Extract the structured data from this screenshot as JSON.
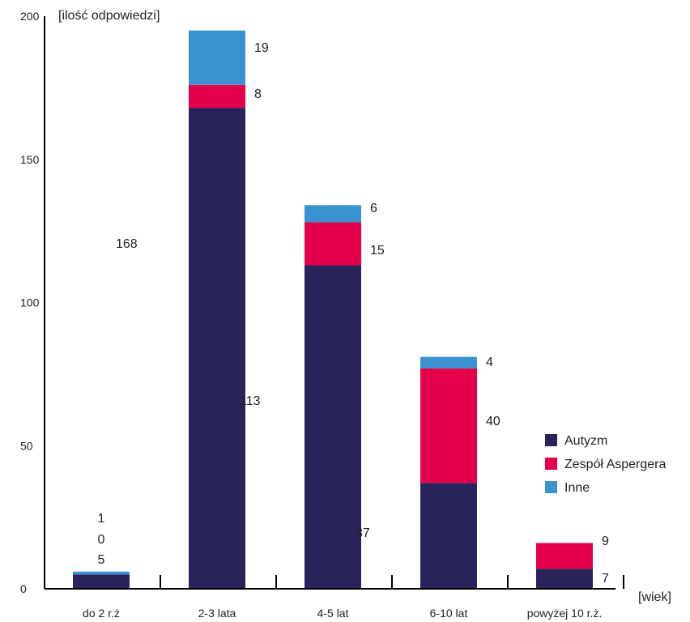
{
  "chart_data": {
    "type": "bar",
    "stacked": true,
    "ylabel": "[ilość odpowiedzi]",
    "xlabel": "[wiek]",
    "ylim": [
      0,
      200
    ],
    "yticks": [
      "0",
      "50",
      "100",
      "150",
      "200"
    ],
    "categories": [
      "do 2 r.ż",
      "2-3 lata",
      "4-5 lat",
      "6-10 lat",
      "powyżej 10 r.ż."
    ],
    "series": [
      {
        "name": "Autyzm",
        "color": "#29235c",
        "values": [
          5,
          168,
          113,
          37,
          7
        ]
      },
      {
        "name": "Zespół Aspergera",
        "color": "#e5004c",
        "values": [
          0,
          8,
          15,
          40,
          9
        ]
      },
      {
        "name": "Inne",
        "color": "#3a93d0",
        "values": [
          1,
          19,
          6,
          4,
          0
        ]
      }
    ],
    "data_labels": [
      [
        "5",
        "0",
        "1"
      ],
      [
        "168",
        "8",
        "19"
      ],
      [
        "113",
        "15",
        "6"
      ],
      [
        "37",
        "40",
        "4"
      ],
      [
        "7",
        "9",
        ""
      ]
    ],
    "grid": false,
    "legend_position": "right"
  }
}
